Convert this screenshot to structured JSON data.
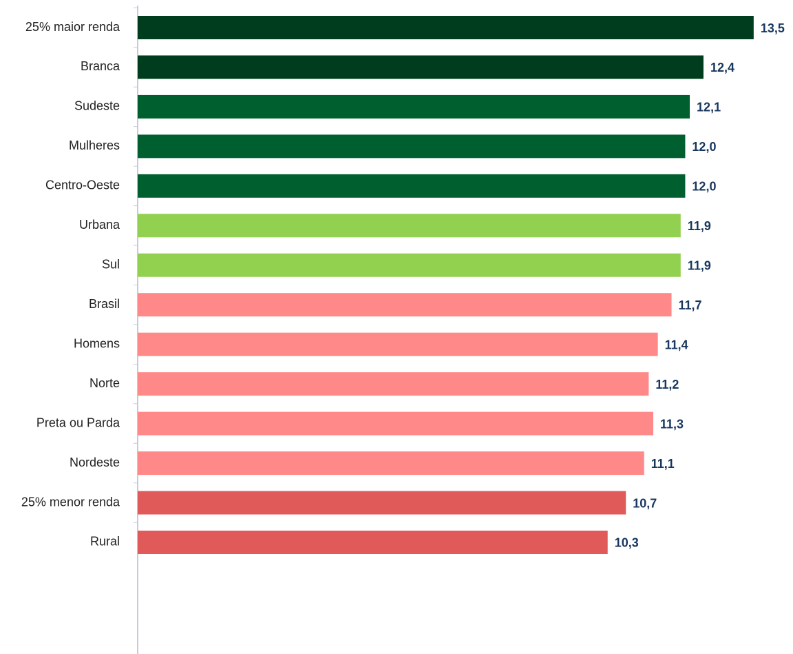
{
  "chart_data": {
    "type": "bar",
    "orientation": "horizontal",
    "categories": [
      "25% maior renda",
      "Branca",
      "Sudeste",
      "Mulheres",
      "Centro-Oeste",
      "Urbana",
      "Sul",
      "Brasil",
      "Homens",
      "Norte",
      "Preta ou Parda",
      "Nordeste",
      "25% menor renda",
      "Rural"
    ],
    "values": [
      13.5,
      12.4,
      12.1,
      12.0,
      12.0,
      11.9,
      11.9,
      11.7,
      11.4,
      11.2,
      11.3,
      11.1,
      10.7,
      10.3
    ],
    "value_labels": [
      "13,5",
      "12,4",
      "12,1",
      "12,0",
      "12,0",
      "11,9",
      "11,9",
      "11,7",
      "11,4",
      "11,2",
      "11,3",
      "11,1",
      "10,7",
      "10,3"
    ],
    "colors": [
      "#003d1f",
      "#003d1f",
      "#005f2e",
      "#005f2e",
      "#005f2e",
      "#92d050",
      "#92d050",
      "#ff8989",
      "#ff8989",
      "#ff8989",
      "#ff8989",
      "#ff8989",
      "#e05a5a",
      "#e05a5a"
    ],
    "xlim": [
      0,
      14
    ]
  }
}
